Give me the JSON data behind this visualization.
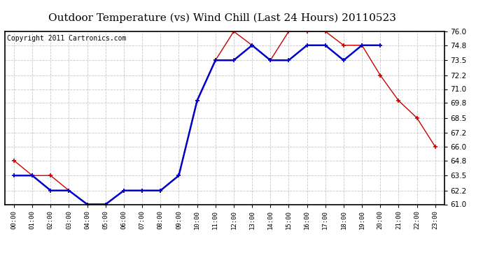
{
  "title": "Outdoor Temperature (vs) Wind Chill (Last 24 Hours) 20110523",
  "copyright": "Copyright 2011 Cartronics.com",
  "x_labels": [
    "00:00",
    "01:00",
    "02:00",
    "03:00",
    "04:00",
    "05:00",
    "06:00",
    "07:00",
    "08:00",
    "09:00",
    "10:00",
    "11:00",
    "12:00",
    "13:00",
    "14:00",
    "15:00",
    "16:00",
    "17:00",
    "18:00",
    "19:00",
    "20:00",
    "21:00",
    "22:00",
    "23:00"
  ],
  "temp_red": [
    64.8,
    63.5,
    63.5,
    62.2,
    61.0,
    61.0,
    62.2,
    62.2,
    62.2,
    63.5,
    70.0,
    73.5,
    76.0,
    74.8,
    73.5,
    76.0,
    76.0,
    76.0,
    74.8,
    74.8,
    72.2,
    70.0,
    68.5,
    66.0
  ],
  "temp_blue": [
    63.5,
    63.5,
    62.2,
    62.2,
    61.0,
    61.0,
    62.2,
    62.2,
    62.2,
    63.5,
    70.0,
    73.5,
    73.5,
    74.8,
    73.5,
    73.5,
    74.8,
    74.8,
    73.5,
    74.8,
    74.8,
    null,
    null,
    null
  ],
  "ylim": [
    61.0,
    76.0
  ],
  "yticks": [
    61.0,
    62.2,
    63.5,
    64.8,
    66.0,
    67.2,
    68.5,
    69.8,
    71.0,
    72.2,
    73.5,
    74.8,
    76.0
  ],
  "background_color": "#ffffff",
  "plot_bg_color": "#ffffff",
  "grid_color": "#c8c8c8",
  "red_color": "#cc0000",
  "blue_color": "#0000cc",
  "title_fontsize": 11,
  "copyright_fontsize": 7
}
